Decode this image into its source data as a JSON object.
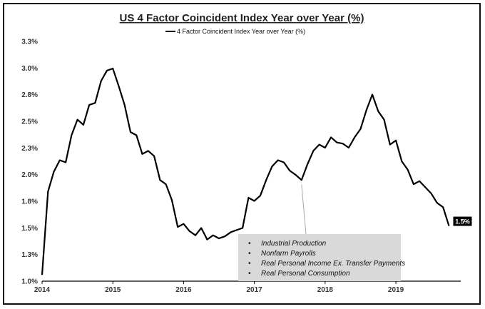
{
  "chart_data": {
    "type": "line",
    "title": "US 4 Factor Coincident Index Year over Year (%)",
    "xlabel": "",
    "ylabel": "",
    "legend": {
      "placement": "top-center",
      "entries": [
        "4 Factor Coincident Index Year over Year (%)"
      ]
    },
    "series": [
      {
        "name": "4 Factor Coincident Index Year over Year (%)",
        "color": "#000000",
        "x": [
          "2014-01",
          "2014-02",
          "2014-03",
          "2014-04",
          "2014-05",
          "2014-06",
          "2014-07",
          "2014-08",
          "2014-09",
          "2014-10",
          "2014-11",
          "2014-12",
          "2015-01",
          "2015-02",
          "2015-03",
          "2015-04",
          "2015-05",
          "2015-06",
          "2015-07",
          "2015-08",
          "2015-09",
          "2015-10",
          "2015-11",
          "2015-12",
          "2016-01",
          "2016-02",
          "2016-03",
          "2016-04",
          "2016-05",
          "2016-06",
          "2016-07",
          "2016-08",
          "2016-09",
          "2016-10",
          "2016-11",
          "2016-12",
          "2017-01",
          "2017-02",
          "2017-03",
          "2017-04",
          "2017-05",
          "2017-06",
          "2017-07",
          "2017-08",
          "2017-09",
          "2017-10",
          "2017-11",
          "2017-12",
          "2018-01",
          "2018-02",
          "2018-03",
          "2018-04",
          "2018-05",
          "2018-06",
          "2018-07",
          "2018-08",
          "2018-09",
          "2018-10",
          "2018-11",
          "2018-12",
          "2019-01",
          "2019-02",
          "2019-03",
          "2019-04",
          "2019-05",
          "2019-06",
          "2019-07",
          "2019-08",
          "2019-09",
          "2019-10"
        ],
        "values": [
          1.06,
          1.86,
          2.05,
          2.16,
          2.14,
          2.4,
          2.55,
          2.5,
          2.69,
          2.71,
          2.92,
          3.02,
          3.04,
          2.87,
          2.69,
          2.43,
          2.4,
          2.22,
          2.25,
          2.2,
          1.97,
          1.93,
          1.78,
          1.52,
          1.55,
          1.48,
          1.44,
          1.51,
          1.4,
          1.44,
          1.41,
          1.43,
          1.47,
          1.49,
          1.51,
          1.8,
          1.77,
          1.82,
          1.97,
          2.1,
          2.16,
          2.14,
          2.06,
          2.02,
          1.97,
          2.12,
          2.25,
          2.31,
          2.28,
          2.38,
          2.33,
          2.32,
          2.28,
          2.38,
          2.46,
          2.64,
          2.79,
          2.63,
          2.55,
          2.31,
          2.35,
          2.15,
          2.07,
          1.93,
          1.96,
          1.9,
          1.84,
          1.75,
          1.71,
          1.53
        ]
      }
    ],
    "xlim": [
      "2014-01",
      "2019-12"
    ],
    "ylim": [
      1.0,
      3.3
    ],
    "x_ticks": [
      "2014",
      "2015",
      "2016",
      "2017",
      "2018",
      "2019"
    ],
    "y_ticks": [
      "1.0%",
      "1.3%",
      "1.5%",
      "1.8%",
      "2.0%",
      "2.3%",
      "2.5%",
      "2.8%",
      "3.0%",
      "3.3%"
    ],
    "grid": false,
    "end_label": "1.5%",
    "annotation": {
      "items": [
        "Industrial Production",
        "Nonfarm Payrolls",
        "Real Personal Income Ex. Transfer Payments",
        "Real Personal Consumption"
      ],
      "bullet": "•",
      "background": "#d9d9d9"
    }
  }
}
